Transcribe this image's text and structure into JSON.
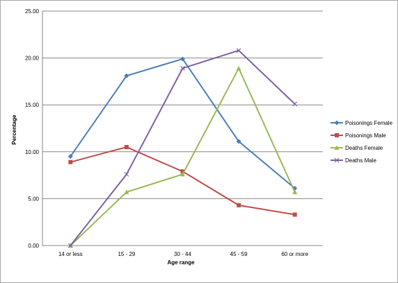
{
  "chart_data": {
    "type": "line",
    "categories": [
      "14 or less",
      "15 - 29",
      "30 - 44",
      "45 - 59",
      "60 or more"
    ],
    "ylabel": "Percentage",
    "xlabel": "Age range",
    "ylim": [
      0,
      25
    ],
    "yticks": [
      "0.00",
      "5.00",
      "10.00",
      "15.00",
      "20.00",
      "25.00"
    ],
    "grid": "horizontal",
    "legend_position": "right",
    "series": [
      {
        "name": "Poisonings Female",
        "color": "#4a7ebb",
        "marker": "diamond",
        "values": [
          9.5,
          18.1,
          19.9,
          11.1,
          6.1
        ]
      },
      {
        "name": "Poisonings Male",
        "color": "#be4b48",
        "marker": "square",
        "values": [
          8.9,
          10.5,
          7.9,
          4.3,
          3.3
        ]
      },
      {
        "name": "Deaths Female",
        "color": "#98b954",
        "marker": "triangle",
        "values": [
          0.0,
          5.7,
          7.6,
          18.9,
          5.7
        ]
      },
      {
        "name": "Deaths Male",
        "color": "#7d60a0",
        "marker": "x",
        "values": [
          0.0,
          7.6,
          18.9,
          20.8,
          15.1
        ]
      }
    ]
  }
}
